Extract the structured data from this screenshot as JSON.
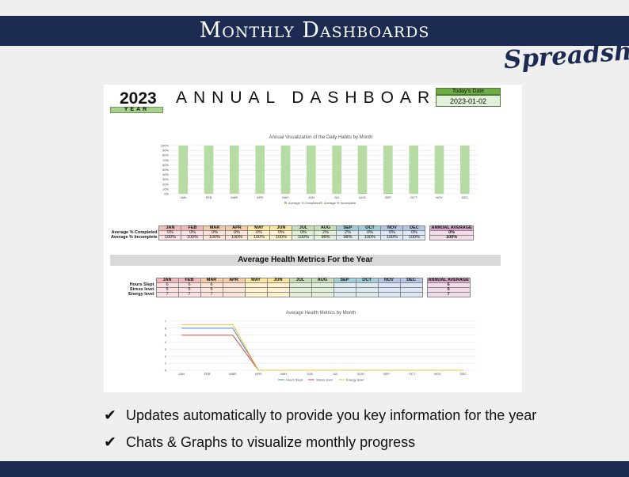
{
  "banner": {
    "title": "Monthly Dashboards",
    "brand": "Spreadsheet"
  },
  "sheet": {
    "year": "2023",
    "year_label": "YEAR",
    "title": "ANNUAL DASHBOARD",
    "date_label": "Today's Date",
    "date_value": "2023-01-02"
  },
  "months": [
    "JAN",
    "FEB",
    "MAR",
    "APR",
    "MAY",
    "JUN",
    "JUL",
    "AUG",
    "SEP",
    "OCT",
    "NOV",
    "DEC"
  ],
  "month_colors": [
    "#f4b7b7",
    "#f4b7b7",
    "#f8cba7",
    "#f8cba7",
    "#ffe699",
    "#ffe699",
    "#c6e0b4",
    "#c6e0b4",
    "#9fcfd6",
    "#9fcfd6",
    "#b4c6e7",
    "#b4c6e7"
  ],
  "month_tints": [
    "#fbe1e1",
    "#fbe1e1",
    "#fce4d6",
    "#fce4d6",
    "#fff2cc",
    "#fff2cc",
    "#e2efda",
    "#e2efda",
    "#ddebf0",
    "#ddebf0",
    "#dde6f5",
    "#dde6f5"
  ],
  "habits_table": {
    "avg_header": "ANNUAL AVERAGE",
    "rows": [
      {
        "label": "Average % Completed",
        "values": [
          "0%",
          "0%",
          "0%",
          "0%",
          "0%",
          "0%",
          "0%",
          "2%",
          "2%",
          "0%",
          "0%",
          "0%"
        ],
        "avg": "0%"
      },
      {
        "label": "Average % Incomplete",
        "values": [
          "100%",
          "100%",
          "100%",
          "100%",
          "100%",
          "100%",
          "100%",
          "98%",
          "98%",
          "100%",
          "100%",
          "100%"
        ],
        "avg": "100%"
      }
    ]
  },
  "health_band": "Average Health Metrics For the Year",
  "health_table": {
    "avg_header": "ANNUAL AVERAGE",
    "rows": [
      {
        "label": "Hours Slept",
        "values": [
          "6",
          "6",
          "6",
          "",
          "",
          "",
          "",
          "",
          "",
          "",
          "",
          ""
        ],
        "avg": "6"
      },
      {
        "label": "Stress level",
        "values": [
          "5",
          "5",
          "5",
          "",
          "",
          "",
          "",
          "",
          "",
          "",
          "",
          ""
        ],
        "avg": "5"
      },
      {
        "label": "Energy level",
        "values": [
          "7",
          "7",
          "7",
          "",
          "",
          "",
          "",
          "",
          "",
          "",
          "",
          ""
        ],
        "avg": "7"
      }
    ]
  },
  "chart_data": [
    {
      "type": "bar",
      "title": "Annual Visualization of the Daily Habits by Month",
      "categories": [
        "JAN",
        "FEB",
        "MAR",
        "APR",
        "MAY",
        "JUN",
        "JUL",
        "AUG",
        "SEP",
        "OCT",
        "NOV",
        "DEC"
      ],
      "series": [
        {
          "name": "Average % Completed",
          "values": [
            0,
            0,
            0,
            0,
            0,
            0,
            0,
            2,
            2,
            0,
            0,
            0
          ],
          "color": "#9ec98a"
        },
        {
          "name": "Average % Incomplete",
          "values": [
            100,
            100,
            100,
            100,
            100,
            100,
            100,
            98,
            98,
            100,
            100,
            100
          ],
          "color": "#b6dca3"
        }
      ],
      "y_ticks": [
        "0%",
        "10%",
        "20%",
        "30%",
        "40%",
        "50%",
        "60%",
        "70%",
        "80%",
        "90%",
        "100%"
      ],
      "ylim": [
        0,
        100
      ],
      "legend": "bottom",
      "grid": true
    },
    {
      "type": "line",
      "title": "Average Health Metrics by Month",
      "categories": [
        "JAN",
        "FEB",
        "MAR",
        "APR",
        "MAY",
        "JUN",
        "JUL",
        "AUG",
        "SEP",
        "OCT",
        "NOV",
        "DEC"
      ],
      "series": [
        {
          "name": "Hours Slept",
          "values": [
            6,
            6,
            6,
            0,
            0,
            0,
            0,
            0,
            0,
            0,
            0,
            0
          ],
          "color": "#4a86c8"
        },
        {
          "name": "Stress level",
          "values": [
            5,
            5,
            5,
            0,
            0,
            0,
            0,
            0,
            0,
            0,
            0,
            0
          ],
          "color": "#e0443c"
        },
        {
          "name": "Energy level",
          "values": [
            6.5,
            6.5,
            6.5,
            0,
            0,
            0,
            0,
            0,
            0,
            0,
            0,
            0
          ],
          "color": "#f2c12e"
        }
      ],
      "y_ticks": [
        "0",
        "1",
        "2",
        "3",
        "4",
        "5",
        "6",
        "7"
      ],
      "ylim": [
        0,
        7
      ],
      "legend": "bottom",
      "grid": true
    }
  ],
  "features": [
    {
      "icon": "checkmark-icon",
      "text": "Updates automatically to provide you key information for the year"
    },
    {
      "icon": "checkmark-icon",
      "text": "Chats & Graphs to visualize monthly progress"
    }
  ]
}
